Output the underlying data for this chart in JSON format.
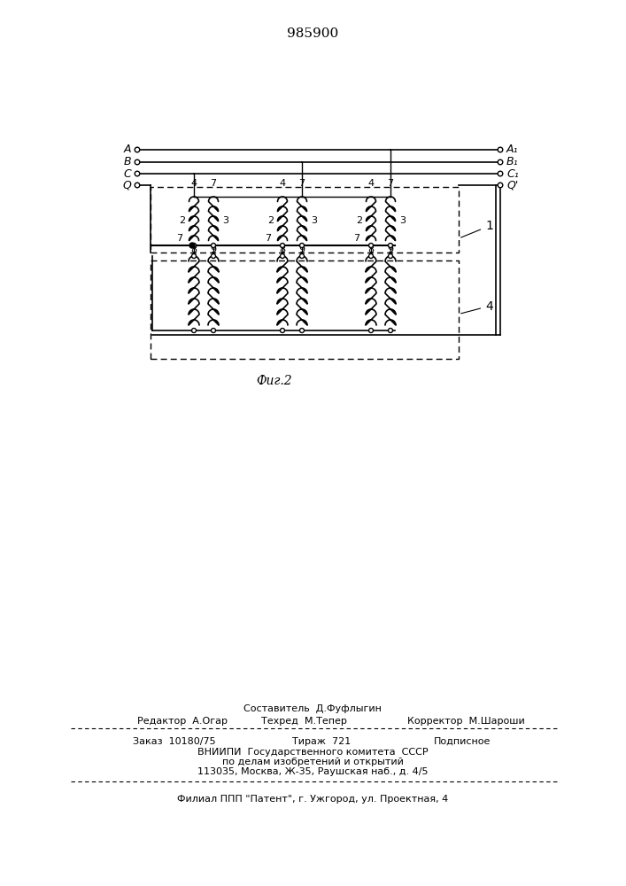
{
  "title": "985900",
  "fig_label": "Фиг.2",
  "background_color": "#ffffff",
  "line_color": "#000000",
  "text_color": "#000000",
  "input_labels": [
    "A",
    "B",
    "C",
    "Q"
  ],
  "output_labels": [
    "A₁",
    "B₁",
    "C₁",
    "Q'"
  ],
  "footer_line1": "Составитель  Д.Фуфлыгин",
  "footer_line2_left": "Редактор  А.Огар",
  "footer_line2_mid": "Техред  М.Тепер",
  "footer_line2_right": "Корректор  М.Шароши",
  "footer_order": "Заказ  10180/75",
  "footer_tirazh": "Тираж  721",
  "footer_podpisnoe": "Подписное",
  "footer_vniip1": "ВНИИПИ  Государственного комитета  СССР",
  "footer_vniip2": "по делам изобретений и открытий",
  "footer_addr": "113035, Москва, Ж-35, Раушская наб., д. 4/5",
  "footer_filial": "Филиал ППП \"Патент\", г. Ужгород, ул. Проектная, 4"
}
